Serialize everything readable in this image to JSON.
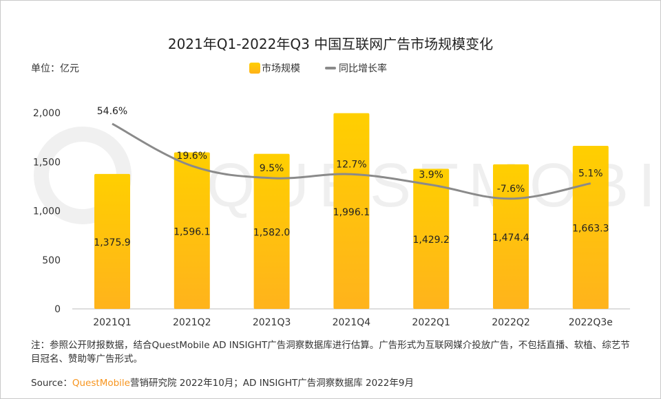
{
  "chart_data": {
    "type": "bar+line",
    "title": "2021年Q1-2022年Q3 中国互联网广告市场规模变化",
    "unit_label": "单位：亿元",
    "categories": [
      "2021Q1",
      "2021Q2",
      "2021Q3",
      "2021Q4",
      "2022Q1",
      "2022Q2",
      "2022Q3e"
    ],
    "series": [
      {
        "name": "市场规模",
        "type": "bar",
        "values": [
          1375.9,
          1596.1,
          1582.0,
          1996.1,
          1429.2,
          1474.4,
          1663.3
        ],
        "labels": [
          "1,375.9",
          "1,596.1",
          "1,582.0",
          "1,996.1",
          "1,429.2",
          "1,474.4",
          "1,663.3"
        ],
        "color": "#ffc20e"
      },
      {
        "name": "同比增长率",
        "type": "line",
        "values": [
          54.6,
          19.6,
          9.5,
          12.7,
          3.9,
          -7.6,
          5.1
        ],
        "labels": [
          "54.6%",
          "19.6%",
          "9.5%",
          "12.7%",
          "3.9%",
          "-7.6%",
          "5.1%"
        ],
        "color": "#8a8a8a"
      }
    ],
    "ylim": [
      0,
      2000
    ],
    "yticks": [
      "0",
      "500",
      "1,000",
      "1,500",
      "2,000"
    ],
    "ytick_values": [
      0,
      500,
      1000,
      1500,
      2000
    ],
    "grid": false,
    "legend_placement": "top-center"
  },
  "note": "注：参照公开财报数据，结合QuestMobile AD INSIGHT广告洞察数据库进行估算。广告形式为互联网媒介投放广告，不包括直播、软植、综艺节目冠名、赞助等广告形式。",
  "source": {
    "prefix": "Source：",
    "brand": "QuestMobile",
    "text": "营销研究院 2022年10月；AD INSIGHT广告洞察数据库 2022年9月"
  }
}
